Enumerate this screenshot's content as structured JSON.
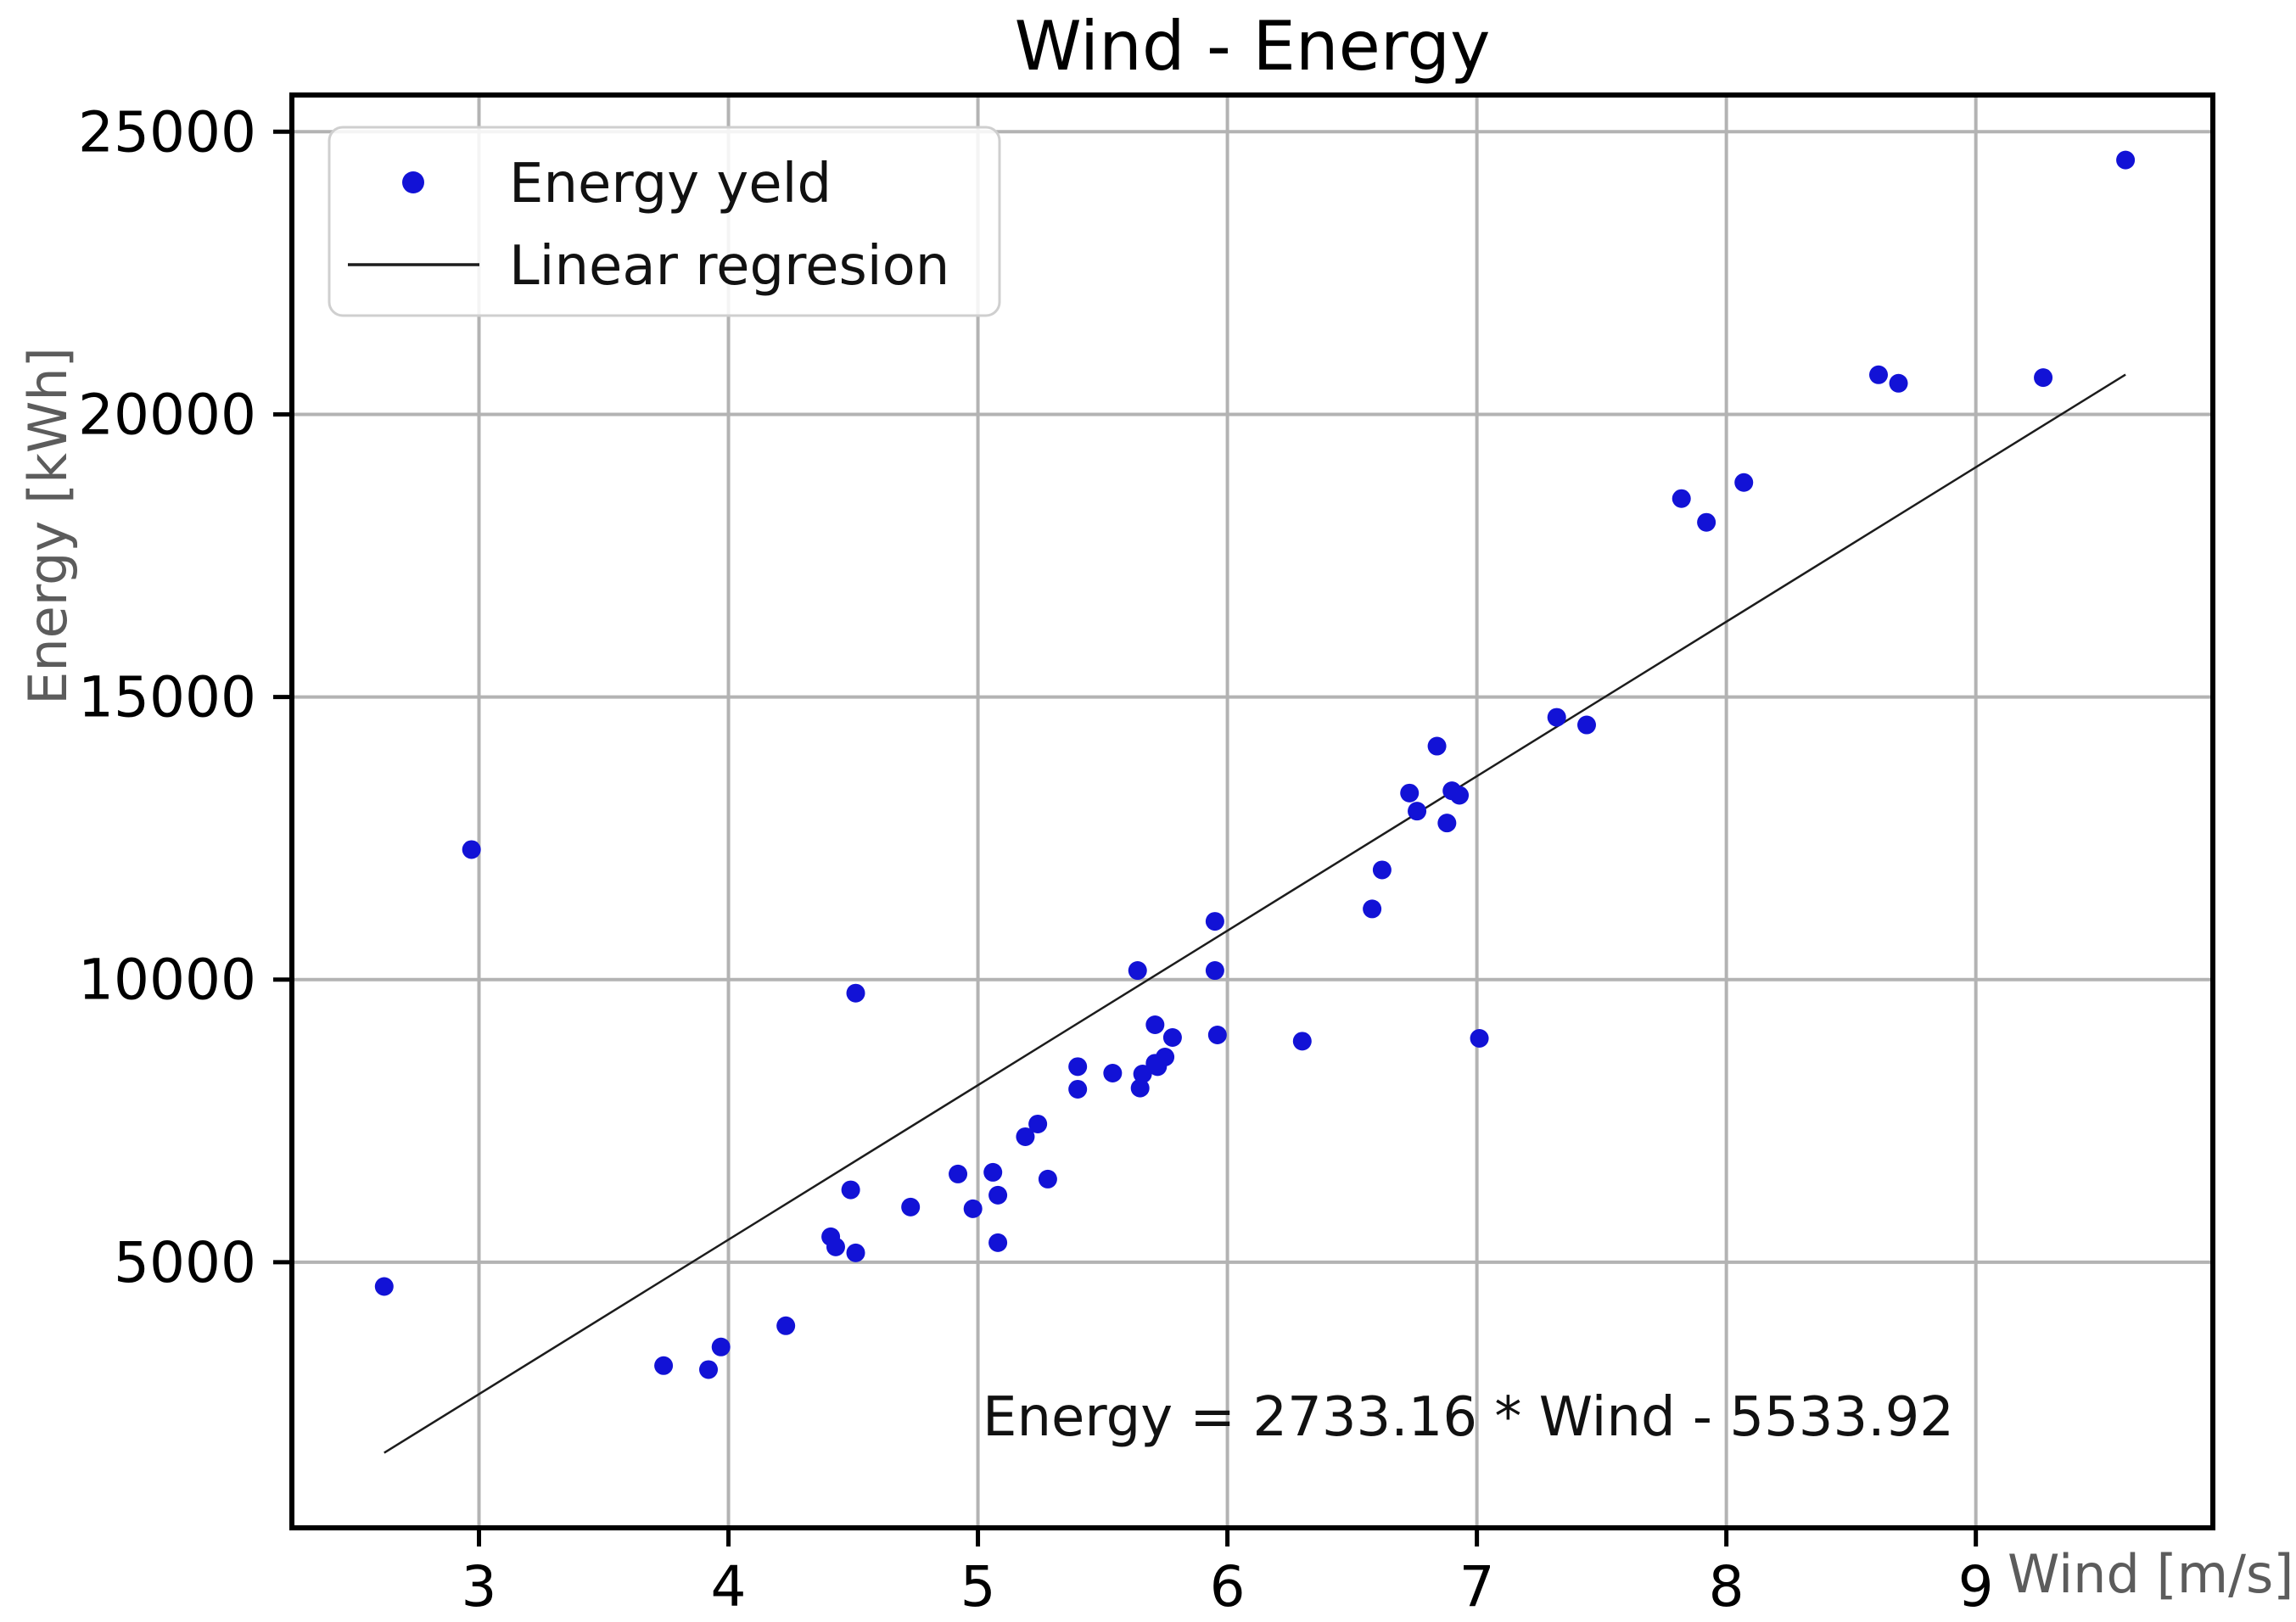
{
  "chart_data": {
    "type": "scatter",
    "title": "Wind - Energy",
    "xlabel": "Wind [m/s]",
    "ylabel": "Energy [kWh]",
    "xlim": [
      2.25,
      9.95
    ],
    "ylim": [
      300,
      25650
    ],
    "xticks": [
      3,
      4,
      5,
      6,
      7,
      8,
      9
    ],
    "yticks": [
      5000,
      10000,
      15000,
      20000,
      25000
    ],
    "grid": true,
    "legend_position": "upper-left",
    "annotation": {
      "text": "Energy = 2733.16 * Wind - 5533.92"
    },
    "regression": {
      "label": "Linear regresion",
      "slope": 2733.16,
      "intercept": -5533.92,
      "x_start": 2.62,
      "x_end": 9.6
    },
    "series": [
      {
        "name": "Energy yeld",
        "type": "scatter",
        "points": [
          [
            2.62,
            4570
          ],
          [
            2.97,
            12300
          ],
          [
            3.74,
            3170
          ],
          [
            3.92,
            3100
          ],
          [
            3.97,
            3500
          ],
          [
            4.23,
            3875
          ],
          [
            4.41,
            5450
          ],
          [
            4.43,
            5270
          ],
          [
            4.51,
            5165
          ],
          [
            4.49,
            6280
          ],
          [
            4.51,
            9760
          ],
          [
            4.73,
            5975
          ],
          [
            4.92,
            6560
          ],
          [
            4.98,
            5945
          ],
          [
            5.06,
            6590
          ],
          [
            5.08,
            6185
          ],
          [
            5.08,
            5345
          ],
          [
            5.19,
            7220
          ],
          [
            5.24,
            7445
          ],
          [
            5.28,
            6470
          ],
          [
            5.4,
            8460
          ],
          [
            5.4,
            8060
          ],
          [
            5.54,
            8345
          ],
          [
            5.64,
            10160
          ],
          [
            5.65,
            8080
          ],
          [
            5.66,
            8330
          ],
          [
            5.71,
            8520
          ],
          [
            5.72,
            8460
          ],
          [
            5.75,
            8630
          ],
          [
            5.71,
            9200
          ],
          [
            5.78,
            8975
          ],
          [
            5.95,
            11030
          ],
          [
            5.95,
            10160
          ],
          [
            5.96,
            9020
          ],
          [
            6.3,
            8910
          ],
          [
            6.58,
            11250
          ],
          [
            6.62,
            11940
          ],
          [
            6.73,
            13300
          ],
          [
            6.76,
            12980
          ],
          [
            6.84,
            14130
          ],
          [
            6.88,
            12770
          ],
          [
            6.9,
            13340
          ],
          [
            6.93,
            13260
          ],
          [
            7.01,
            8960
          ],
          [
            7.32,
            14640
          ],
          [
            7.44,
            14505
          ],
          [
            7.82,
            18510
          ],
          [
            7.92,
            18090
          ],
          [
            8.07,
            18795
          ],
          [
            8.61,
            20700
          ],
          [
            8.69,
            20550
          ],
          [
            9.27,
            20650
          ],
          [
            9.6,
            24500
          ]
        ]
      }
    ],
    "legend_entries": [
      {
        "label": "Energy yeld",
        "marker": "dot"
      },
      {
        "label": "Linear regresion",
        "marker": "line"
      }
    ],
    "colors": {
      "dot": "#1212d6",
      "line": "#1c1c1c",
      "grid": "#b3b3b3",
      "spine": "#000000",
      "axis_label": "#5c5c5c",
      "legend_edge": "#cfcfcf"
    }
  }
}
